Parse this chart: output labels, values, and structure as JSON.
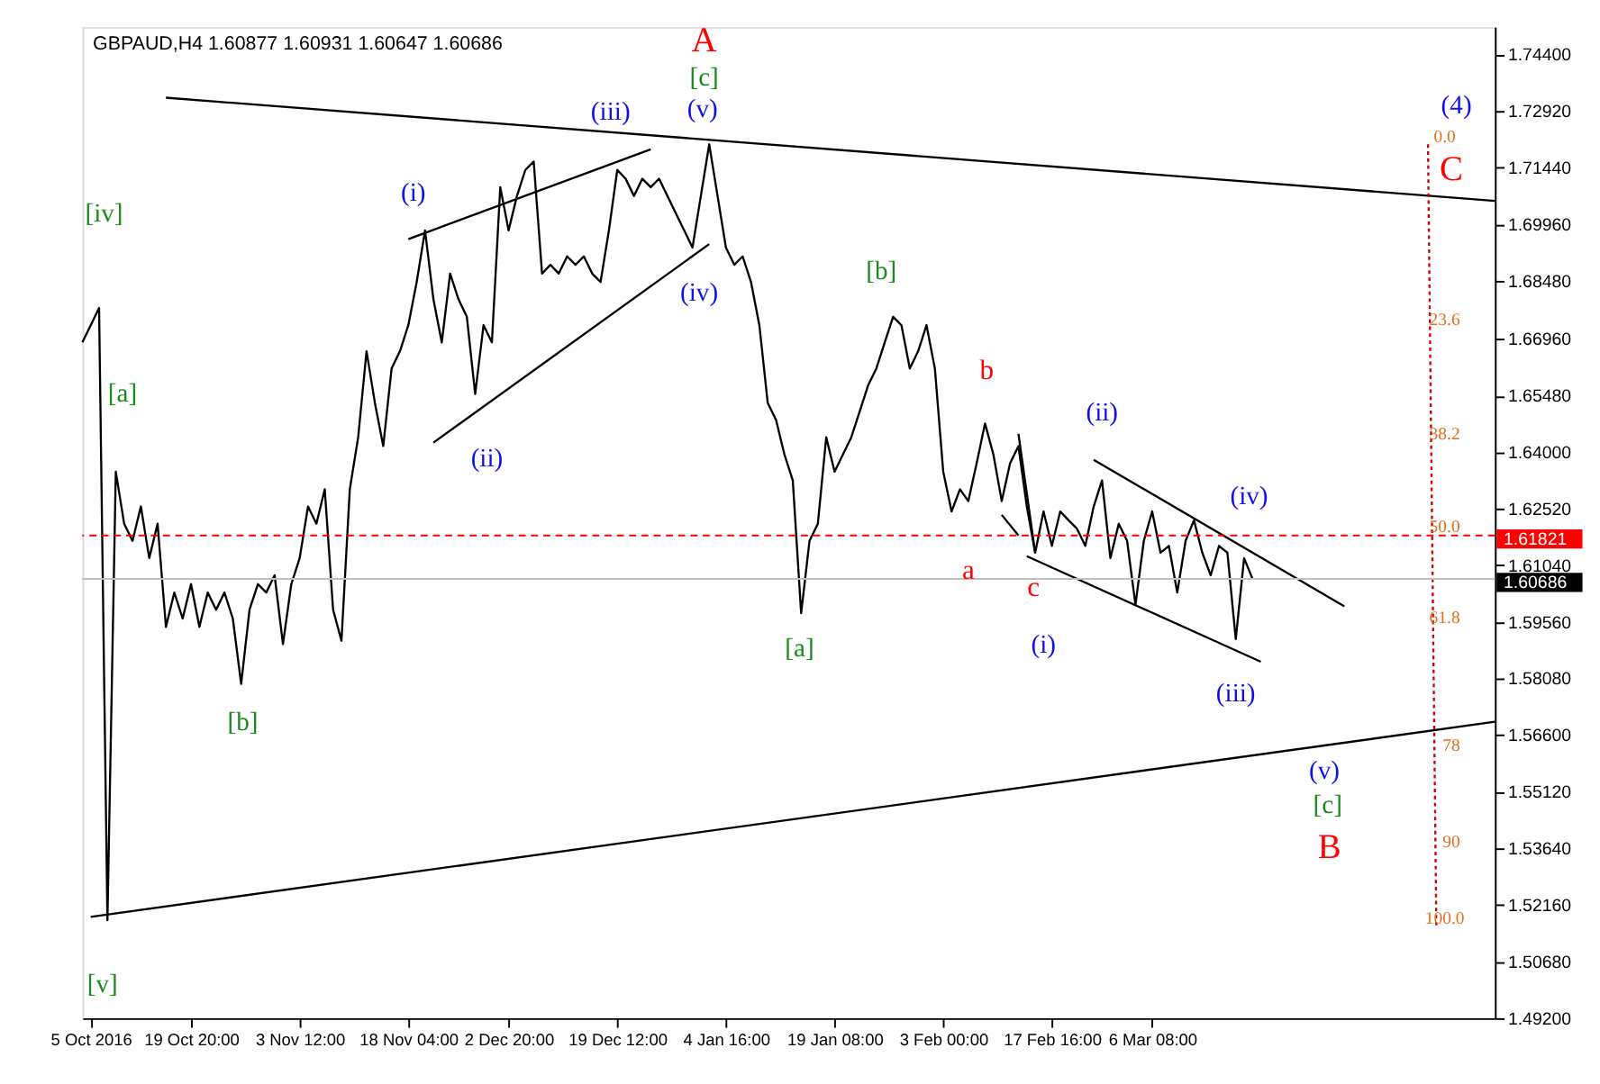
{
  "chart_data": {
    "type": "line",
    "title": "GBPAUD,H4  1.60877 1.60931 1.60647 1.60686",
    "categories": [
      null,
      "5 Oct 2016",
      null,
      null,
      null,
      null,
      null,
      null,
      null,
      null,
      null,
      null,
      null,
      "19 Oct 20:00",
      null,
      null,
      null,
      null,
      null,
      null,
      null,
      null,
      null,
      null,
      null,
      null,
      "3 Nov 12:00",
      null,
      null,
      null,
      null,
      null,
      null,
      null,
      null,
      null,
      null,
      null,
      null,
      "18 Nov 04:00",
      null,
      null,
      null,
      null,
      null,
      null,
      null,
      null,
      null,
      null,
      null,
      "2 Dec 20:00",
      null,
      null,
      null,
      null,
      null,
      null,
      null,
      null,
      null,
      null,
      null,
      null,
      "19 Dec 12:00",
      null,
      null,
      null,
      null,
      null,
      null,
      null,
      null,
      null,
      null,
      null,
      null,
      "4 Jan 16:00",
      null,
      null,
      null,
      null,
      null,
      null,
      null,
      null,
      null,
      null,
      null,
      null,
      "19 Jan 08:00",
      null,
      null,
      null,
      null,
      null,
      null,
      null,
      null,
      null,
      null,
      null,
      null,
      "3 Feb 00:00",
      null,
      null,
      null,
      null,
      null,
      null,
      null,
      null,
      null,
      null,
      null,
      null,
      "17 Feb 16:00",
      null,
      null,
      null,
      null,
      null,
      null,
      null,
      null,
      null,
      null,
      null,
      "6 Mar 08:00",
      null,
      null,
      null,
      null,
      null,
      null,
      null,
      null,
      null,
      null,
      null,
      null,
      null,
      null,
      null,
      null,
      null,
      null,
      null,
      null,
      null,
      null,
      null,
      null,
      null,
      null,
      null,
      null,
      null,
      null,
      null,
      null,
      null,
      null,
      null,
      null,
      null,
      null,
      null,
      null,
      null
    ],
    "ylim": [
      1.492,
      1.7512
    ],
    "yticks": [
      {
        "value": 1.744,
        "label": "1.74400"
      },
      {
        "value": 1.7292,
        "label": "1.72920"
      },
      {
        "value": 1.7144,
        "label": "1.71440"
      },
      {
        "value": 1.6996,
        "label": "1.69960"
      },
      {
        "value": 1.6848,
        "label": "1.68480"
      },
      {
        "value": 1.6696,
        "label": "1.66960"
      },
      {
        "value": 1.6548,
        "label": "1.65480"
      },
      {
        "value": 1.64,
        "label": "1.64000"
      },
      {
        "value": 1.6252,
        "label": "1.62520"
      },
      {
        "value": 1.6104,
        "label": "1.61040"
      },
      {
        "value": 1.5956,
        "label": "1.59560"
      },
      {
        "value": 1.5808,
        "label": "1.58080"
      },
      {
        "value": 1.566,
        "label": "1.56600"
      },
      {
        "value": 1.5512,
        "label": "1.55120"
      },
      {
        "value": 1.5364,
        "label": "1.53640"
      },
      {
        "value": 1.5216,
        "label": "1.52160"
      },
      {
        "value": 1.5068,
        "label": "1.50680"
      },
      {
        "value": 1.492,
        "label": "1.49200"
      }
    ],
    "grid": false,
    "series": [
      {
        "color": "#000000",
        "values": [
          1.6687,
          1.6732,
          1.6777,
          1.5176,
          1.6349,
          1.6213,
          1.6168,
          1.6258,
          1.6123,
          1.6213,
          1.5943,
          1.6033,
          1.5965,
          1.6055,
          1.5943,
          1.6033,
          1.5988,
          1.6033,
          1.5965,
          1.5794,
          1.5988,
          1.6055,
          1.6033,
          1.6078,
          1.5898,
          1.6055,
          1.6123,
          1.6258,
          1.6213,
          1.6303,
          1.5988,
          1.5907,
          1.6303,
          1.6439,
          1.6664,
          1.6529,
          1.6416,
          1.6619,
          1.6664,
          1.6732,
          1.6845,
          1.698,
          1.68,
          1.6687,
          1.6867,
          1.68,
          1.6754,
          1.6552,
          1.6732,
          1.6687,
          1.7093,
          1.698,
          1.707,
          1.7138,
          1.716,
          1.6867,
          1.689,
          1.6867,
          1.6912,
          1.689,
          1.6912,
          1.6867,
          1.6845,
          1.698,
          1.7138,
          1.7115,
          1.707,
          1.7115,
          1.7093,
          1.7115,
          1.707,
          1.7025,
          1.698,
          1.6935,
          1.707,
          1.7205,
          1.707,
          1.6935,
          1.689,
          1.6912,
          1.6845,
          1.6732,
          1.6529,
          1.6484,
          1.6394,
          1.6326,
          1.5979,
          1.6168,
          1.6213,
          1.6439,
          1.6349,
          1.6394,
          1.6439,
          1.6506,
          1.6574,
          1.6619,
          1.6687,
          1.6754,
          1.6732,
          1.6619,
          1.6664,
          1.6732,
          1.6619,
          1.6349,
          1.6245,
          1.6303,
          1.6272,
          1.6371,
          1.6475,
          1.6394,
          1.6272,
          1.6371,
          1.6416,
          1.6258,
          1.6137,
          1.6245,
          1.6155,
          1.6245,
          1.6222,
          1.62,
          1.6155,
          1.6258,
          1.6326,
          1.6123,
          1.6213,
          1.6168,
          1.6001,
          1.6168,
          1.6245,
          1.6137,
          1.6155,
          1.6033,
          1.6168,
          1.6222,
          1.6137,
          1.6078,
          1.6155,
          1.6137,
          1.5911,
          1.6123,
          1.6069,
          null,
          null,
          null,
          null,
          null,
          null,
          null,
          null,
          null,
          null,
          null,
          null,
          null,
          null,
          null,
          null,
          null,
          null,
          null,
          null,
          null,
          null,
          null,
          null,
          null,
          null,
          null,
          null,
          null
        ]
      },
      {
        "color": "#000000",
        "values": [
          null,
          null,
          null,
          null,
          null,
          null,
          null,
          null,
          null,
          null,
          1.7327,
          null,
          null,
          null,
          null,
          null,
          null,
          null,
          null,
          null,
          null,
          null,
          null,
          null,
          null,
          null,
          null,
          null,
          null,
          null,
          null,
          null,
          null,
          null,
          null,
          null,
          null,
          null,
          null,
          null,
          null,
          null,
          null,
          null,
          null,
          null,
          null,
          null,
          null,
          null,
          null,
          null,
          null,
          null,
          null,
          null,
          null,
          null,
          null,
          null,
          null,
          null,
          null,
          null,
          null,
          null,
          null,
          null,
          null,
          null,
          null,
          null,
          null,
          null,
          null,
          null,
          null,
          null,
          null,
          null,
          null,
          null,
          null,
          null,
          null,
          null,
          null,
          null,
          null,
          null,
          null,
          null,
          null,
          null,
          null,
          null,
          null,
          null,
          null,
          null,
          null,
          null,
          null,
          null,
          null,
          null,
          null,
          null,
          null,
          null,
          null,
          null,
          null,
          null,
          null,
          null,
          null,
          null,
          null,
          null,
          null,
          null,
          null,
          null,
          null,
          null,
          null,
          null,
          null,
          null,
          null,
          null,
          null,
          null,
          null,
          null,
          null,
          null,
          null,
          null,
          null,
          null,
          null,
          null,
          null,
          null,
          null,
          null,
          null,
          null,
          null,
          null,
          null,
          null,
          null,
          null,
          null,
          null,
          null,
          null,
          null,
          null,
          null,
          null,
          null,
          null,
          null,
          null,
          null,
          1.7057
        ]
      },
      {
        "color": "#000000",
        "values": [
          null,
          1.5185,
          null,
          null,
          null,
          null,
          null,
          null,
          null,
          null,
          null,
          null,
          null,
          null,
          null,
          null,
          null,
          null,
          null,
          null,
          null,
          null,
          null,
          null,
          null,
          null,
          null,
          null,
          null,
          null,
          null,
          null,
          null,
          null,
          null,
          null,
          null,
          null,
          null,
          null,
          null,
          null,
          null,
          null,
          null,
          null,
          null,
          null,
          null,
          null,
          null,
          null,
          null,
          null,
          null,
          null,
          null,
          null,
          null,
          null,
          null,
          null,
          null,
          null,
          null,
          null,
          null,
          null,
          null,
          null,
          null,
          null,
          null,
          null,
          null,
          null,
          null,
          null,
          null,
          null,
          null,
          null,
          null,
          null,
          null,
          null,
          null,
          null,
          null,
          null,
          null,
          null,
          null,
          null,
          null,
          null,
          null,
          null,
          null,
          null,
          null,
          null,
          null,
          null,
          null,
          null,
          null,
          null,
          null,
          null,
          null,
          null,
          null,
          null,
          null,
          null,
          null,
          null,
          null,
          null,
          null,
          null,
          null,
          null,
          null,
          null,
          null,
          null,
          null,
          null,
          null,
          null,
          null,
          null,
          null,
          null,
          null,
          null,
          null,
          null,
          null,
          null,
          null,
          null,
          null,
          null,
          null,
          null,
          null,
          null,
          null,
          null,
          null,
          null,
          null,
          null,
          null,
          null,
          null,
          null,
          null,
          null,
          null,
          null,
          null,
          null,
          null,
          null,
          null,
          1.5695
        ]
      },
      {
        "color": "#000000",
        "values": [
          null,
          null,
          null,
          null,
          null,
          null,
          null,
          null,
          null,
          null,
          null,
          null,
          null,
          null,
          null,
          null,
          null,
          null,
          null,
          null,
          null,
          null,
          null,
          null,
          null,
          null,
          null,
          null,
          null,
          null,
          null,
          null,
          null,
          null,
          null,
          null,
          null,
          null,
          null,
          1.6957,
          null,
          null,
          null,
          null,
          null,
          null,
          null,
          null,
          null,
          null,
          null,
          null,
          null,
          null,
          null,
          null,
          null,
          null,
          null,
          null,
          null,
          null,
          null,
          null,
          null,
          null,
          null,
          null,
          1.7192,
          null,
          null,
          null,
          null,
          null,
          null,
          null,
          null,
          null,
          null,
          null,
          null,
          null,
          null,
          null,
          null,
          null,
          null,
          null,
          null,
          null,
          null,
          null,
          null,
          null,
          null,
          null,
          null,
          null,
          null,
          null,
          null,
          null,
          null,
          null,
          null,
          null,
          null,
          null,
          null,
          null,
          null,
          null,
          null,
          null,
          null,
          null,
          null,
          null,
          null,
          null,
          null,
          null,
          null,
          null,
          null,
          null,
          null,
          null,
          null,
          null,
          null,
          null,
          null,
          null,
          null,
          null,
          null,
          null,
          null,
          null,
          null,
          null,
          null,
          null,
          null,
          null,
          null,
          null,
          null,
          null,
          null,
          null,
          null,
          null,
          null,
          null,
          null,
          null,
          null,
          null,
          null,
          null,
          null,
          null,
          null,
          null,
          null,
          null,
          null,
          null
        ]
      },
      {
        "color": "#000000",
        "values": [
          null,
          null,
          null,
          null,
          null,
          null,
          null,
          null,
          null,
          null,
          null,
          null,
          null,
          null,
          null,
          null,
          null,
          null,
          null,
          null,
          null,
          null,
          null,
          null,
          null,
          null,
          null,
          null,
          null,
          null,
          null,
          null,
          null,
          null,
          null,
          null,
          null,
          null,
          null,
          null,
          null,
          null,
          1.6425,
          null,
          null,
          null,
          null,
          null,
          null,
          null,
          null,
          null,
          null,
          null,
          null,
          null,
          null,
          null,
          null,
          null,
          null,
          null,
          null,
          null,
          null,
          null,
          null,
          null,
          null,
          null,
          null,
          null,
          null,
          null,
          null,
          1.6944,
          null,
          null,
          null,
          null,
          null,
          null,
          null,
          null,
          null,
          null,
          null,
          null,
          null,
          null,
          null,
          null,
          null,
          null,
          null,
          null,
          null,
          null,
          null,
          null,
          null,
          null,
          null,
          null,
          null,
          null,
          null,
          null,
          null,
          null,
          null,
          null,
          null,
          null,
          null,
          null,
          null,
          null,
          null,
          null,
          null,
          null,
          null,
          null,
          null,
          null,
          null,
          null,
          null,
          null,
          null,
          null,
          null,
          null,
          null,
          null,
          null,
          null,
          null,
          null,
          null,
          null,
          null,
          null,
          null,
          null,
          null,
          null,
          null,
          null,
          null,
          null,
          null,
          null,
          null,
          null,
          null,
          null,
          null,
          null,
          null,
          null,
          null,
          null,
          null,
          null,
          null,
          null,
          null,
          null
        ]
      },
      {
        "color": "#000000",
        "values": [
          null,
          null,
          null,
          null,
          null,
          null,
          null,
          null,
          null,
          null,
          null,
          null,
          null,
          null,
          null,
          null,
          null,
          null,
          null,
          null,
          null,
          null,
          null,
          null,
          null,
          null,
          null,
          null,
          null,
          null,
          null,
          null,
          null,
          null,
          null,
          null,
          null,
          null,
          null,
          null,
          null,
          null,
          null,
          null,
          null,
          null,
          null,
          null,
          null,
          null,
          null,
          null,
          null,
          null,
          null,
          null,
          null,
          null,
          null,
          null,
          null,
          null,
          null,
          null,
          null,
          null,
          null,
          null,
          null,
          null,
          null,
          null,
          null,
          null,
          null,
          null,
          null,
          null,
          null,
          null,
          null,
          null,
          null,
          null,
          null,
          null,
          null,
          null,
          null,
          null,
          null,
          null,
          null,
          null,
          null,
          null,
          null,
          null,
          null,
          null,
          null,
          null,
          null,
          null,
          null,
          null,
          null,
          null,
          null,
          null,
          1.6236,
          null,
          1.6182,
          null,
          null,
          null,
          null,
          null,
          null,
          null,
          null,
          null,
          null,
          null,
          null,
          null,
          null,
          null,
          null,
          null,
          null,
          null,
          null,
          null,
          null,
          null,
          null,
          null,
          null,
          null,
          null,
          null,
          null,
          null,
          null,
          null,
          null,
          null,
          null,
          null,
          null,
          null,
          null,
          null,
          null,
          null,
          null,
          null,
          null,
          null,
          null,
          null,
          null,
          null,
          null,
          null,
          null,
          null,
          null,
          null
        ]
      },
      {
        "color": "#000000",
        "values": [
          null,
          null,
          null,
          null,
          null,
          null,
          null,
          null,
          null,
          null,
          null,
          null,
          null,
          null,
          null,
          null,
          null,
          null,
          null,
          null,
          null,
          null,
          null,
          null,
          null,
          null,
          null,
          null,
          null,
          null,
          null,
          null,
          null,
          null,
          null,
          null,
          null,
          null,
          null,
          null,
          null,
          null,
          null,
          null,
          null,
          null,
          null,
          null,
          null,
          null,
          null,
          null,
          null,
          null,
          null,
          null,
          null,
          null,
          null,
          null,
          null,
          null,
          null,
          null,
          null,
          null,
          null,
          null,
          null,
          null,
          null,
          null,
          null,
          null,
          null,
          null,
          null,
          null,
          null,
          null,
          null,
          null,
          null,
          null,
          null,
          null,
          null,
          null,
          null,
          null,
          null,
          null,
          null,
          null,
          null,
          null,
          null,
          null,
          null,
          null,
          null,
          null,
          null,
          null,
          null,
          null,
          null,
          null,
          null,
          null,
          null,
          null,
          1.6448,
          null,
          1.6137,
          null,
          null,
          null,
          null,
          null,
          null,
          null,
          null,
          null,
          null,
          null,
          null,
          null,
          null,
          null,
          null,
          null,
          null,
          null,
          null,
          null,
          null,
          null,
          null,
          null,
          null,
          null,
          null,
          null,
          null,
          null,
          null,
          null,
          null,
          null,
          null,
          null,
          null,
          null,
          null,
          null,
          null,
          null,
          null,
          null,
          null,
          null,
          null,
          null,
          null,
          null,
          null,
          null,
          null,
          null
        ]
      },
      {
        "color": "#000000",
        "values": [
          null,
          null,
          null,
          null,
          null,
          null,
          null,
          null,
          null,
          null,
          null,
          null,
          null,
          null,
          null,
          null,
          null,
          null,
          null,
          null,
          null,
          null,
          null,
          null,
          null,
          null,
          null,
          null,
          null,
          null,
          null,
          null,
          null,
          null,
          null,
          null,
          null,
          null,
          null,
          null,
          null,
          null,
          null,
          null,
          null,
          null,
          null,
          null,
          null,
          null,
          null,
          null,
          null,
          null,
          null,
          null,
          null,
          null,
          null,
          null,
          null,
          null,
          null,
          null,
          null,
          null,
          null,
          null,
          null,
          null,
          null,
          null,
          null,
          null,
          null,
          null,
          null,
          null,
          null,
          null,
          null,
          null,
          null,
          null,
          null,
          null,
          null,
          null,
          null,
          null,
          null,
          null,
          null,
          null,
          null,
          null,
          null,
          null,
          null,
          null,
          null,
          null,
          null,
          null,
          null,
          null,
          null,
          null,
          null,
          null,
          null,
          null,
          null,
          1.6128,
          null,
          null,
          null,
          null,
          null,
          null,
          null,
          null,
          null,
          null,
          null,
          null,
          null,
          null,
          null,
          null,
          null,
          null,
          null,
          null,
          null,
          null,
          null,
          null,
          null,
          null,
          null,
          1.5852,
          null,
          null,
          null,
          null,
          null,
          null,
          null,
          null,
          null,
          null,
          null,
          null,
          null,
          null,
          null,
          null,
          null,
          null,
          null,
          null,
          null,
          null,
          null,
          null,
          null,
          null,
          null,
          null
        ]
      },
      {
        "color": "#000000",
        "values": [
          null,
          null,
          null,
          null,
          null,
          null,
          null,
          null,
          null,
          null,
          null,
          null,
          null,
          null,
          null,
          null,
          null,
          null,
          null,
          null,
          null,
          null,
          null,
          null,
          null,
          null,
          null,
          null,
          null,
          null,
          null,
          null,
          null,
          null,
          null,
          null,
          null,
          null,
          null,
          null,
          null,
          null,
          null,
          null,
          null,
          null,
          null,
          null,
          null,
          null,
          null,
          null,
          null,
          null,
          null,
          null,
          null,
          null,
          null,
          null,
          null,
          null,
          null,
          null,
          null,
          null,
          null,
          null,
          null,
          null,
          null,
          null,
          null,
          null,
          null,
          null,
          null,
          null,
          null,
          null,
          null,
          null,
          null,
          null,
          null,
          null,
          null,
          null,
          null,
          null,
          null,
          null,
          null,
          null,
          null,
          null,
          null,
          null,
          null,
          null,
          null,
          null,
          null,
          null,
          null,
          null,
          null,
          null,
          null,
          null,
          null,
          null,
          null,
          null,
          null,
          null,
          null,
          null,
          null,
          null,
          null,
          1.638,
          null,
          null,
          null,
          null,
          null,
          null,
          null,
          null,
          null,
          null,
          null,
          null,
          null,
          null,
          null,
          null,
          null,
          null,
          null,
          null,
          null,
          null,
          null,
          null,
          null,
          null,
          null,
          null,
          null,
          1.5997,
          null,
          null,
          null,
          null,
          null,
          null,
          null,
          null,
          null,
          null,
          null,
          null,
          null,
          null,
          null,
          null,
          null,
          null
        ]
      },
      {
        "color": "#cc0000",
        "line_style": "dotted",
        "values": [
          null,
          null,
          null,
          null,
          null,
          null,
          null,
          null,
          null,
          null,
          null,
          null,
          null,
          null,
          null,
          null,
          null,
          null,
          null,
          null,
          null,
          null,
          null,
          null,
          null,
          null,
          null,
          null,
          null,
          null,
          null,
          null,
          null,
          null,
          null,
          null,
          null,
          null,
          null,
          null,
          null,
          null,
          null,
          null,
          null,
          null,
          null,
          null,
          null,
          null,
          null,
          null,
          null,
          null,
          null,
          null,
          null,
          null,
          null,
          null,
          null,
          null,
          null,
          null,
          null,
          null,
          null,
          null,
          null,
          null,
          null,
          null,
          null,
          null,
          null,
          null,
          null,
          null,
          null,
          null,
          null,
          null,
          null,
          null,
          null,
          null,
          null,
          null,
          null,
          null,
          null,
          null,
          null,
          null,
          null,
          null,
          null,
          null,
          null,
          null,
          null,
          null,
          null,
          null,
          null,
          null,
          null,
          null,
          null,
          null,
          null,
          null,
          null,
          null,
          null,
          null,
          null,
          null,
          null,
          null,
          null,
          null,
          null,
          null,
          null,
          null,
          null,
          null,
          null,
          null,
          null,
          null,
          null,
          null,
          null,
          null,
          null,
          null,
          null,
          null,
          null,
          null,
          null,
          null,
          null,
          null,
          null,
          null,
          null,
          null,
          null,
          null,
          null,
          null,
          null,
          null,
          null,
          null,
          null,
          null,
          null,
          1.7205,
          1.5158,
          null,
          null,
          null,
          null,
          null,
          null,
          null
        ]
      }
    ],
    "ref_lines": [
      {
        "axis": "y",
        "value": 1.61821,
        "label": "1.61821",
        "color": "#ff0000",
        "line_style": "dashed"
      },
      {
        "axis": "y",
        "value": 1.60686,
        "label": "1.60686",
        "color": "#c0c0c0",
        "line_style": "solid"
      }
    ],
    "annotations": [
      "A",
      "[c]",
      "(v)",
      "(iii)",
      "(i)",
      "(ii)",
      "(iv)",
      "[iv]",
      "[a]",
      "[b]",
      "[v]",
      "[b]",
      "[a]",
      "b",
      "a",
      "c",
      "(i)",
      "(ii)",
      "(iv)",
      "(iii)",
      "(v)",
      "[c]",
      "B",
      "(4)",
      "C",
      "0.0",
      "23.6",
      "38.2",
      "50.0",
      "61.8",
      "78",
      "90",
      "100.0"
    ]
  }
}
